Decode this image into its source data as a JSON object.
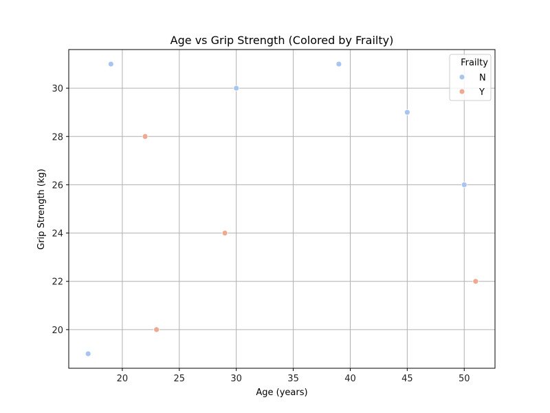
{
  "chart_data": {
    "type": "scatter",
    "title": "Age vs Grip Strength (Colored by Frailty)",
    "xlabel": "Age (years)",
    "ylabel": "Grip Strength (kg)",
    "xlim": [
      15.3,
      52.7
    ],
    "ylim": [
      18.4,
      31.6
    ],
    "xticks": [
      20,
      25,
      30,
      35,
      40,
      45,
      50
    ],
    "yticks": [
      20,
      22,
      24,
      26,
      28,
      30
    ],
    "grid": true,
    "legend": {
      "title": "Frailty",
      "placement": "top-right",
      "entries": [
        {
          "label": "N",
          "color": "#a8c4f0"
        },
        {
          "label": "Y",
          "color": "#eeaa90"
        }
      ]
    },
    "series": [
      {
        "name": "N",
        "color": "#a8c4f0",
        "points": [
          {
            "x": 17,
            "y": 19
          },
          {
            "x": 19,
            "y": 31
          },
          {
            "x": 30,
            "y": 30
          },
          {
            "x": 39,
            "y": 31
          },
          {
            "x": 45,
            "y": 29
          },
          {
            "x": 50,
            "y": 26
          }
        ]
      },
      {
        "name": "Y",
        "color": "#eeaa90",
        "points": [
          {
            "x": 22,
            "y": 28
          },
          {
            "x": 23,
            "y": 20
          },
          {
            "x": 29,
            "y": 24
          },
          {
            "x": 51,
            "y": 22
          }
        ]
      }
    ]
  }
}
